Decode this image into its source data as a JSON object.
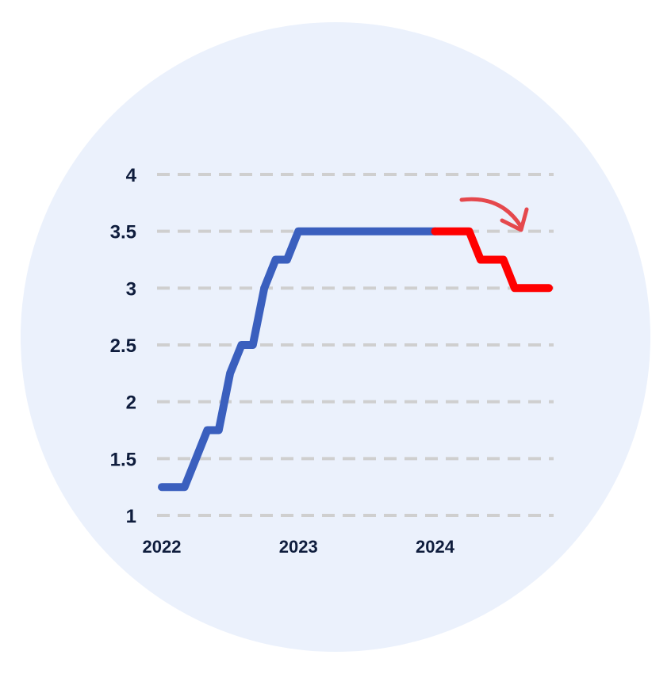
{
  "chart_data": {
    "type": "line",
    "title": "",
    "xlabel": "",
    "ylabel": "",
    "ylim": [
      1,
      4
    ],
    "xlim": [
      "2022-01-01",
      "2024-11-01"
    ],
    "y_ticks": [
      "1",
      "1.5",
      "2",
      "2.5",
      "3",
      "3.5",
      "4"
    ],
    "x_ticks": [
      "2022",
      "2023",
      "2024"
    ],
    "grid": true,
    "legend": "none",
    "shape": "step",
    "series": [
      {
        "color": "#3a5fbe",
        "points": [
          [
            "2022-01-01",
            1.25
          ],
          [
            "2022-03-01",
            1.25
          ],
          [
            "2022-05-01",
            1.75
          ],
          [
            "2022-06-01",
            1.75
          ],
          [
            "2022-07-01",
            2.25
          ],
          [
            "2022-08-01",
            2.5
          ],
          [
            "2022-09-01",
            2.5
          ],
          [
            "2022-10-01",
            3.0
          ],
          [
            "2022-11-01",
            3.25
          ],
          [
            "2022-12-01",
            3.25
          ],
          [
            "2023-01-01",
            3.5
          ],
          [
            "2024-01-01",
            3.5
          ]
        ]
      },
      {
        "color": "#ff0000",
        "points": [
          [
            "2024-01-01",
            3.5
          ],
          [
            "2024-04-01",
            3.5
          ],
          [
            "2024-05-01",
            3.25
          ],
          [
            "2024-07-01",
            3.25
          ],
          [
            "2024-08-01",
            3.0
          ],
          [
            "2024-11-01",
            3.0
          ]
        ]
      }
    ],
    "annotations": [
      {
        "type": "curved-arrow",
        "direction": "down-right",
        "color": "#e5484d"
      }
    ],
    "colors": {
      "background_circle": "#ebf1fc",
      "grid": "#cfcfcf",
      "text": "#0f1d3d"
    }
  }
}
